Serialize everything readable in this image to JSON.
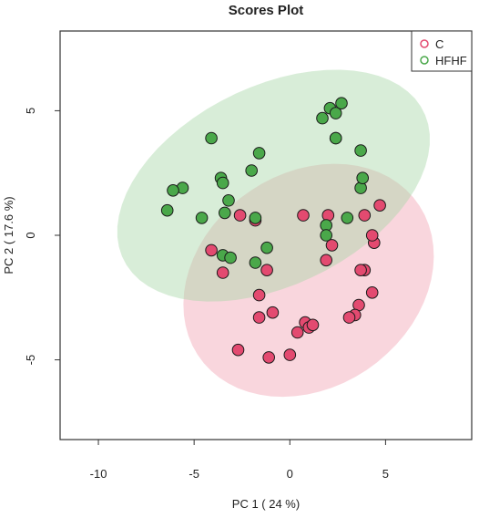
{
  "chart_data": {
    "type": "scatter",
    "title": "Scores Plot",
    "xlabel": "PC 1 ( 24 %)",
    "ylabel": "PC 2 ( 17.6 %)",
    "xlim": [
      -12,
      9.5
    ],
    "ylim": [
      -8.2,
      8.2
    ],
    "x_ticks": [
      -10,
      -5,
      0,
      5
    ],
    "y_ticks": [
      -5,
      0,
      5
    ],
    "x_tick_labels": [
      "-10",
      "-5",
      "0",
      "5"
    ],
    "y_tick_labels": [
      "-5",
      "0",
      "5"
    ],
    "grid": false,
    "legend_position": "top-right",
    "series": [
      {
        "name": "C",
        "marker_color": "#e34a70",
        "ellipse_color": "#f2a3b3",
        "x": [
          -2.6,
          -1.8,
          0.7,
          2.0,
          3.9,
          4.7,
          -4.1,
          -3.5,
          -1.2,
          1.9,
          2.2,
          3.9,
          4.4,
          4.3,
          -1.6,
          -1.6,
          -0.9,
          4.3,
          3.6,
          3.4,
          3.1,
          0.8,
          1.0,
          1.2,
          0.4,
          -2.7,
          -1.1,
          0.0,
          3.7
        ],
        "y": [
          0.8,
          0.6,
          0.8,
          0.8,
          0.8,
          1.2,
          -0.6,
          -1.5,
          -1.4,
          -1.0,
          -0.4,
          -1.4,
          -0.3,
          0.0,
          -2.4,
          -3.3,
          -3.1,
          -2.3,
          -2.8,
          -3.2,
          -3.3,
          -3.5,
          -3.7,
          -3.6,
          -3.9,
          -4.6,
          -4.9,
          -4.8,
          -1.4
        ]
      },
      {
        "name": "HFHF",
        "marker_color": "#4aa84a",
        "ellipse_color": "#a9d8a9",
        "x": [
          2.1,
          2.4,
          2.7,
          1.7,
          2.4,
          -4.1,
          2.4,
          3.7,
          -1.6,
          -2.0,
          -3.6,
          -3.5,
          -5.6,
          -6.1,
          -3.2,
          -6.4,
          -4.6,
          -3.4,
          -1.8,
          1.9,
          1.9,
          3.0,
          3.7,
          3.8,
          -1.2,
          -3.5,
          -3.1,
          -1.8
        ],
        "y": [
          5.1,
          4.9,
          5.3,
          4.7,
          3.9,
          3.9,
          3.9,
          3.4,
          3.3,
          2.6,
          2.3,
          2.1,
          1.9,
          1.8,
          1.4,
          1.0,
          0.7,
          0.9,
          0.7,
          0.4,
          0.0,
          0.7,
          1.9,
          2.3,
          -0.5,
          -0.8,
          -0.9,
          -1.1
        ]
      }
    ]
  }
}
